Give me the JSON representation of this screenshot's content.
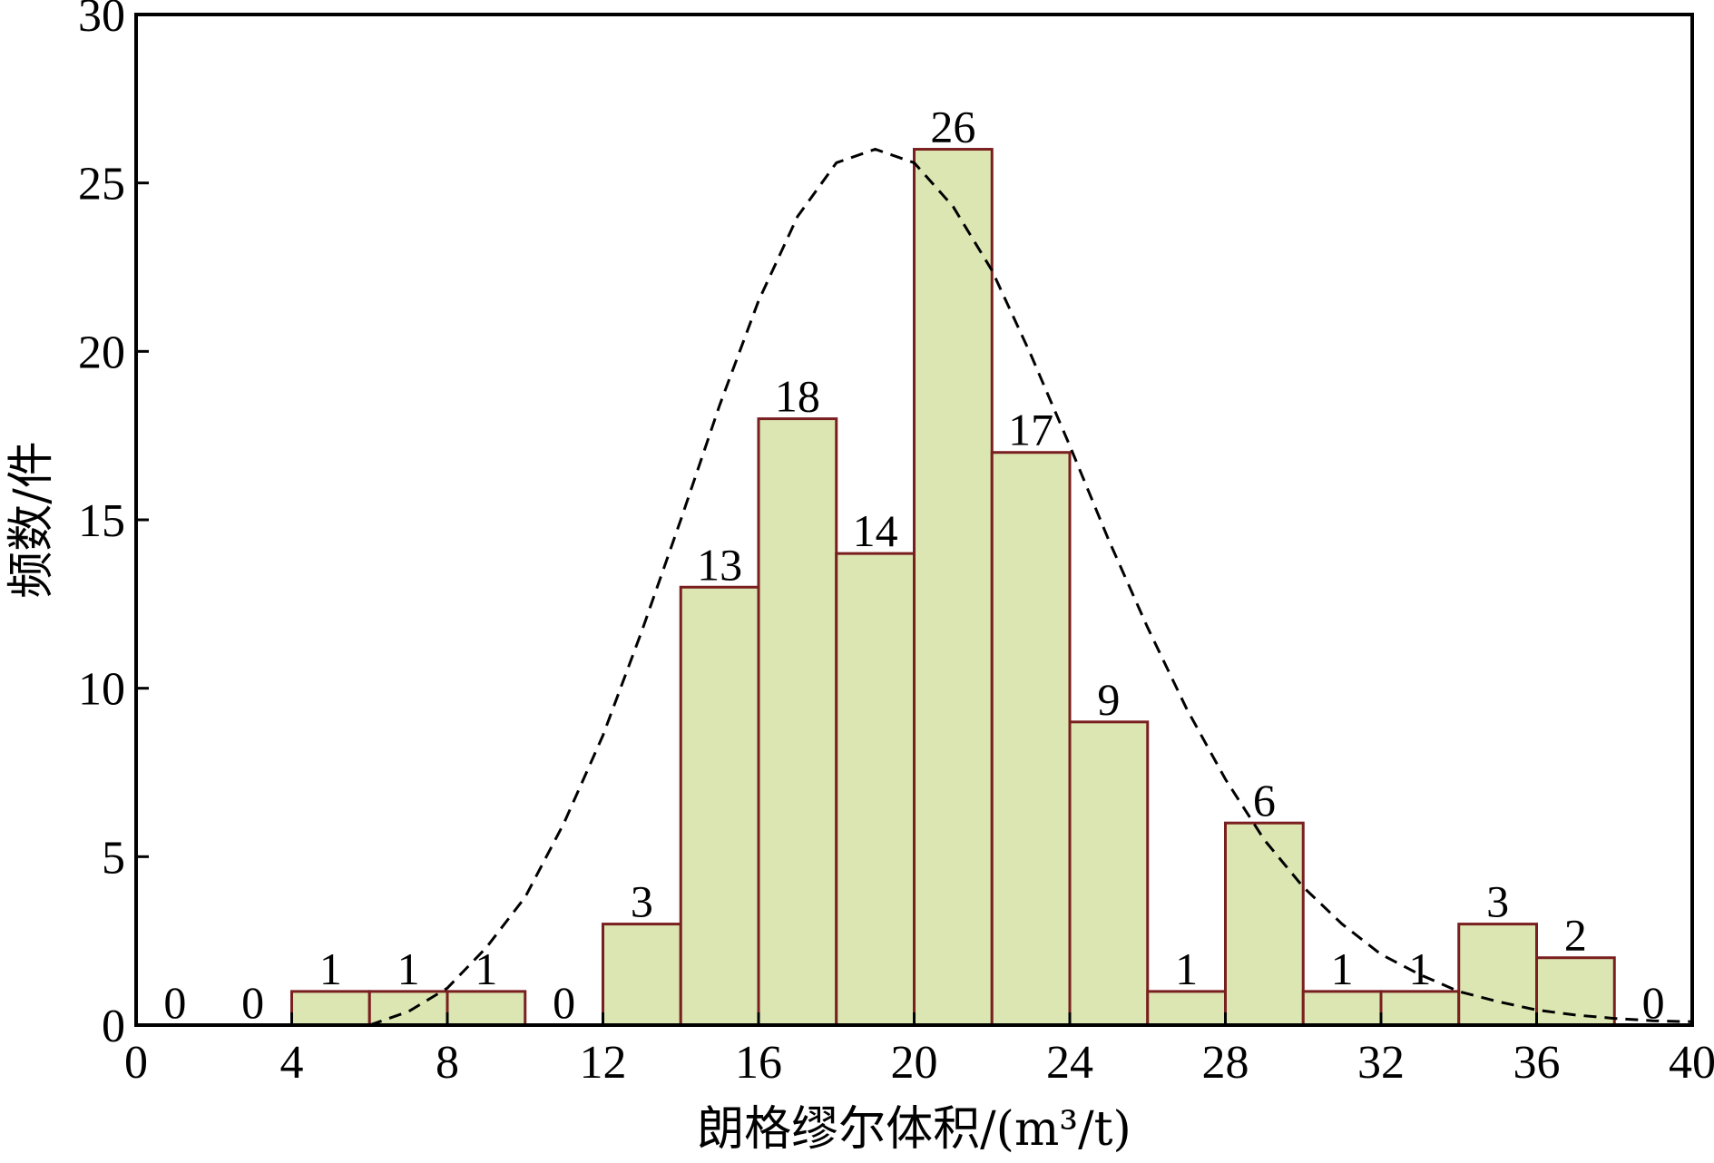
{
  "chart_data": {
    "type": "bar",
    "subtype": "histogram",
    "xlabel": "朗格缪尔体积/(m³/t)",
    "ylabel": "频数/件",
    "xlim": [
      0,
      40
    ],
    "ylim": [
      0,
      30
    ],
    "x_ticks": [
      0,
      4,
      8,
      12,
      16,
      20,
      24,
      28,
      32,
      36,
      40
    ],
    "y_ticks": [
      0,
      5,
      10,
      15,
      20,
      25,
      30
    ],
    "bin_width": 2,
    "bins": [
      {
        "start": 0,
        "end": 2,
        "count": 0
      },
      {
        "start": 2,
        "end": 4,
        "count": 0
      },
      {
        "start": 4,
        "end": 6,
        "count": 1
      },
      {
        "start": 6,
        "end": 8,
        "count": 1
      },
      {
        "start": 8,
        "end": 10,
        "count": 1
      },
      {
        "start": 10,
        "end": 12,
        "count": 0
      },
      {
        "start": 12,
        "end": 14,
        "count": 3
      },
      {
        "start": 14,
        "end": 16,
        "count": 13
      },
      {
        "start": 16,
        "end": 18,
        "count": 18
      },
      {
        "start": 18,
        "end": 20,
        "count": 14
      },
      {
        "start": 20,
        "end": 22,
        "count": 26
      },
      {
        "start": 22,
        "end": 24,
        "count": 17
      },
      {
        "start": 24,
        "end": 26,
        "count": 9
      },
      {
        "start": 26,
        "end": 28,
        "count": 1
      },
      {
        "start": 28,
        "end": 30,
        "count": 6
      },
      {
        "start": 30,
        "end": 32,
        "count": 1
      },
      {
        "start": 32,
        "end": 34,
        "count": 1
      },
      {
        "start": 34,
        "end": 36,
        "count": 3
      },
      {
        "start": 36,
        "end": 38,
        "count": 2
      },
      {
        "start": 38,
        "end": 40,
        "count": 0
      }
    ],
    "fit_curve": {
      "style": "dashed",
      "peak_x": 19,
      "peak_y": 26,
      "points": [
        [
          6,
          0
        ],
        [
          7,
          0.4
        ],
        [
          8,
          1.1
        ],
        [
          9,
          2.3
        ],
        [
          10,
          3.8
        ],
        [
          11,
          6.0
        ],
        [
          12,
          8.6
        ],
        [
          13,
          11.7
        ],
        [
          14,
          15.0
        ],
        [
          15,
          18.4
        ],
        [
          16,
          21.5
        ],
        [
          17,
          24.0
        ],
        [
          18,
          25.6
        ],
        [
          19,
          26.0
        ],
        [
          20,
          25.6
        ],
        [
          21,
          24.3
        ],
        [
          22,
          22.4
        ],
        [
          23,
          19.9
        ],
        [
          24,
          17.2
        ],
        [
          25,
          14.4
        ],
        [
          26,
          11.8
        ],
        [
          27,
          9.4
        ],
        [
          28,
          7.3
        ],
        [
          29,
          5.5
        ],
        [
          30,
          4.1
        ],
        [
          31,
          3.0
        ],
        [
          32,
          2.1
        ],
        [
          33,
          1.5
        ],
        [
          34,
          1.0
        ],
        [
          35,
          0.7
        ],
        [
          36,
          0.45
        ],
        [
          37,
          0.3
        ],
        [
          38,
          0.2
        ],
        [
          39,
          0.13
        ],
        [
          40,
          0.1
        ]
      ]
    },
    "colors": {
      "bar_fill": "#dbe6b3",
      "bar_stroke": "#7a1f1f",
      "curve": "#000000",
      "axes": "#000000"
    },
    "grid": false,
    "legend": "none"
  }
}
